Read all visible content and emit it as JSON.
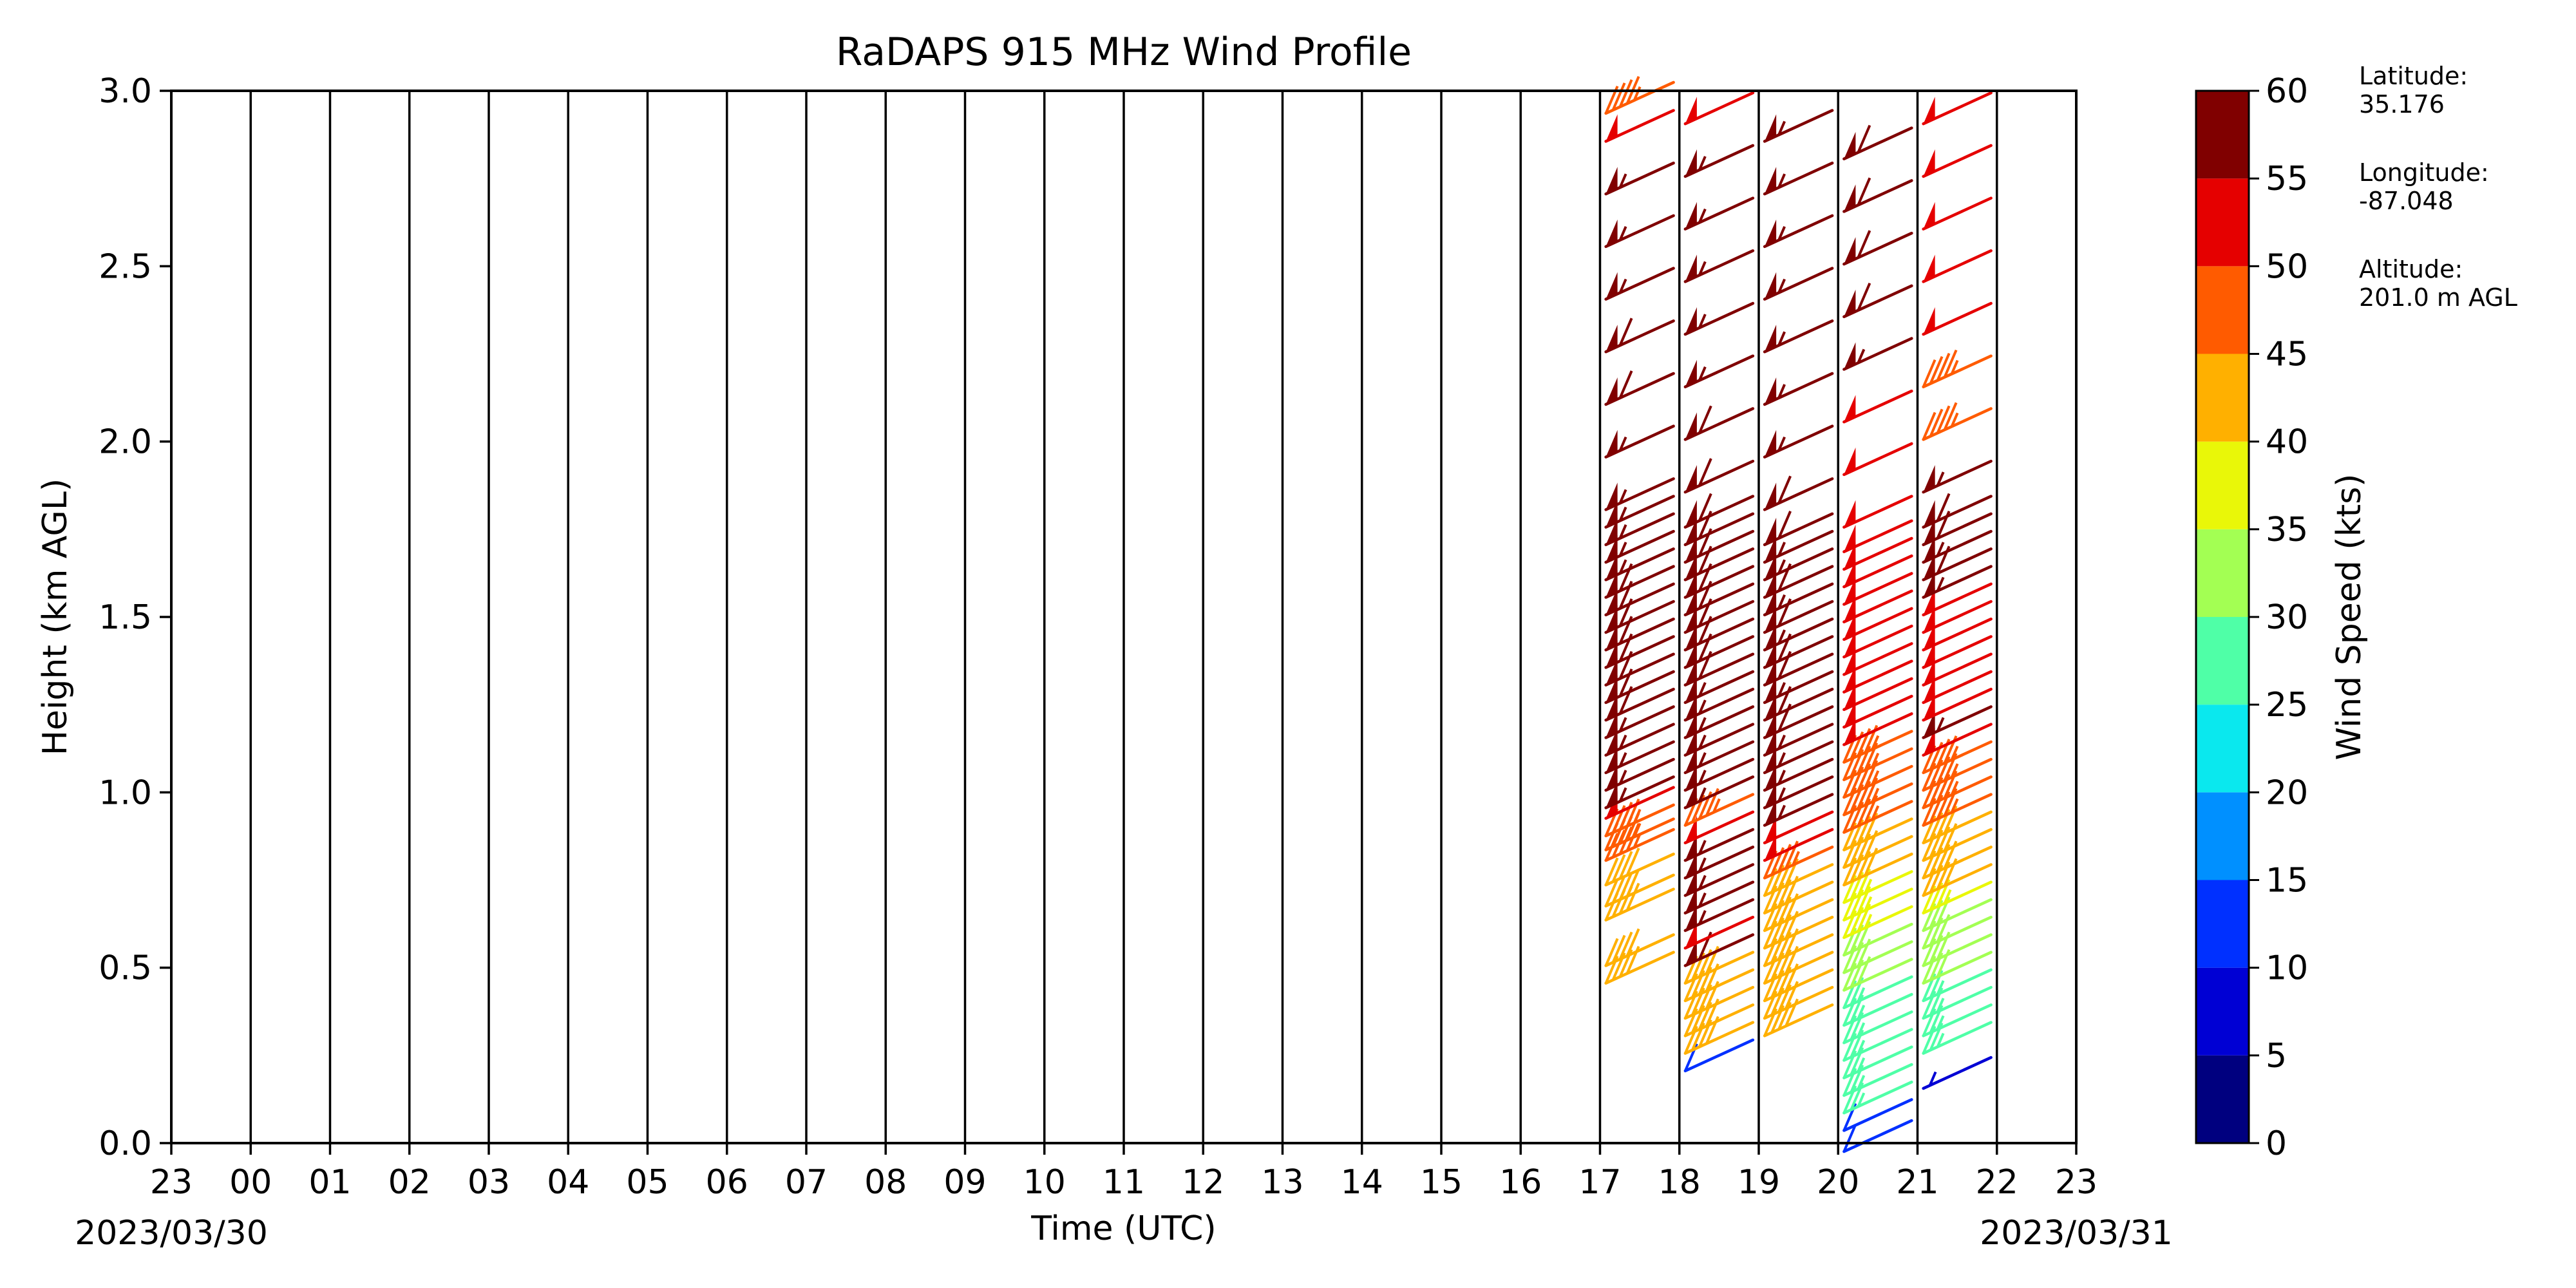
{
  "chart_data": {
    "type": "wind_barbs",
    "title": "RaDAPS 915 MHz Wind Profile",
    "xlabel": "Time (UTC)",
    "ylabel": "Height (km AGL)",
    "x_tick_labels": [
      "23",
      "00",
      "01",
      "02",
      "03",
      "04",
      "05",
      "06",
      "07",
      "08",
      "09",
      "10",
      "11",
      "12",
      "13",
      "14",
      "15",
      "16",
      "17",
      "18",
      "19",
      "20",
      "21",
      "22",
      "23"
    ],
    "date_left": "2023/03/30",
    "date_right": "2023/03/31",
    "y_ticks": [
      "0.0",
      "0.5",
      "1.0",
      "1.5",
      "2.0",
      "2.5",
      "3.0"
    ],
    "ylim": [
      0,
      3
    ],
    "grid": "vertical-hourly",
    "colorbar": {
      "label": "Wind Speed (kts)",
      "ticks": [
        "0",
        "5",
        "10",
        "15",
        "20",
        "25",
        "30",
        "35",
        "40",
        "45",
        "50",
        "55",
        "60"
      ],
      "colors": [
        "#00007f",
        "#0000d4",
        "#0030ff",
        "#0090ff",
        "#0ae8ee",
        "#4fffa7",
        "#a3ff53",
        "#e9f708",
        "#ffb000",
        "#ff5b00",
        "#e50000",
        "#800000"
      ]
    },
    "columns": [
      {
        "time": "17.5",
        "levels": [
          [
            0.5,
            40
          ],
          [
            0.55,
            40
          ],
          [
            0.68,
            40
          ],
          [
            0.72,
            40
          ],
          [
            0.78,
            40
          ],
          [
            0.85,
            45
          ],
          [
            0.88,
            45
          ],
          [
            0.92,
            45
          ],
          [
            0.97,
            50
          ],
          [
            1.0,
            55
          ],
          [
            1.05,
            55
          ],
          [
            1.1,
            55
          ],
          [
            1.15,
            55
          ],
          [
            1.2,
            55
          ],
          [
            1.25,
            60
          ],
          [
            1.3,
            60
          ],
          [
            1.35,
            60
          ],
          [
            1.4,
            60
          ],
          [
            1.45,
            60
          ],
          [
            1.5,
            60
          ],
          [
            1.55,
            60
          ],
          [
            1.6,
            60
          ],
          [
            1.65,
            55
          ],
          [
            1.7,
            55
          ],
          [
            1.75,
            55
          ],
          [
            1.8,
            55
          ],
          [
            1.85,
            55
          ],
          [
            2.0,
            55
          ],
          [
            2.15,
            60
          ],
          [
            2.3,
            60
          ],
          [
            2.45,
            55
          ],
          [
            2.6,
            55
          ],
          [
            2.75,
            55
          ],
          [
            2.9,
            50
          ],
          [
            2.98,
            45
          ]
        ]
      },
      {
        "time": "18.5",
        "levels": [
          [
            0.25,
            10
          ],
          [
            0.3,
            40
          ],
          [
            0.35,
            40
          ],
          [
            0.4,
            40
          ],
          [
            0.45,
            40
          ],
          [
            0.5,
            40
          ],
          [
            0.55,
            60
          ],
          [
            0.6,
            50
          ],
          [
            0.65,
            55
          ],
          [
            0.7,
            55
          ],
          [
            0.75,
            55
          ],
          [
            0.8,
            55
          ],
          [
            0.85,
            55
          ],
          [
            0.9,
            50
          ],
          [
            0.95,
            45
          ],
          [
            1.0,
            55
          ],
          [
            1.05,
            55
          ],
          [
            1.1,
            55
          ],
          [
            1.15,
            55
          ],
          [
            1.2,
            55
          ],
          [
            1.25,
            55
          ],
          [
            1.3,
            55
          ],
          [
            1.35,
            60
          ],
          [
            1.4,
            60
          ],
          [
            1.45,
            60
          ],
          [
            1.5,
            60
          ],
          [
            1.55,
            60
          ],
          [
            1.6,
            60
          ],
          [
            1.65,
            60
          ],
          [
            1.7,
            60
          ],
          [
            1.75,
            60
          ],
          [
            1.8,
            60
          ],
          [
            1.9,
            60
          ],
          [
            2.05,
            60
          ],
          [
            2.2,
            55
          ],
          [
            2.35,
            55
          ],
          [
            2.5,
            55
          ],
          [
            2.65,
            55
          ],
          [
            2.8,
            55
          ],
          [
            2.95,
            50
          ]
        ]
      },
      {
        "time": "19.5",
        "levels": [
          [
            0.35,
            40
          ],
          [
            0.4,
            40
          ],
          [
            0.45,
            40
          ],
          [
            0.5,
            40
          ],
          [
            0.55,
            40
          ],
          [
            0.6,
            40
          ],
          [
            0.65,
            40
          ],
          [
            0.7,
            40
          ],
          [
            0.75,
            40
          ],
          [
            0.8,
            45
          ],
          [
            0.85,
            50
          ],
          [
            0.9,
            50
          ],
          [
            0.95,
            55
          ],
          [
            1.0,
            55
          ],
          [
            1.05,
            55
          ],
          [
            1.1,
            55
          ],
          [
            1.15,
            55
          ],
          [
            1.2,
            60
          ],
          [
            1.25,
            60
          ],
          [
            1.3,
            55
          ],
          [
            1.35,
            60
          ],
          [
            1.4,
            60
          ],
          [
            1.45,
            55
          ],
          [
            1.5,
            60
          ],
          [
            1.55,
            55
          ],
          [
            1.6,
            60
          ],
          [
            1.65,
            55
          ],
          [
            1.7,
            55
          ],
          [
            1.75,
            60
          ],
          [
            1.85,
            60
          ],
          [
            2.0,
            55
          ],
          [
            2.15,
            55
          ],
          [
            2.3,
            55
          ],
          [
            2.45,
            55
          ],
          [
            2.6,
            55
          ],
          [
            2.75,
            55
          ],
          [
            2.9,
            55
          ]
        ]
      },
      {
        "time": "20.5",
        "levels": [
          [
            0.02,
            10
          ],
          [
            0.08,
            10
          ],
          [
            0.13,
            25
          ],
          [
            0.18,
            25
          ],
          [
            0.23,
            25
          ],
          [
            0.28,
            25
          ],
          [
            0.33,
            25
          ],
          [
            0.38,
            25
          ],
          [
            0.43,
            25
          ],
          [
            0.48,
            30
          ],
          [
            0.53,
            30
          ],
          [
            0.58,
            30
          ],
          [
            0.63,
            35
          ],
          [
            0.68,
            35
          ],
          [
            0.73,
            35
          ],
          [
            0.78,
            40
          ],
          [
            0.83,
            40
          ],
          [
            0.88,
            40
          ],
          [
            0.93,
            45
          ],
          [
            0.98,
            45
          ],
          [
            1.03,
            45
          ],
          [
            1.08,
            45
          ],
          [
            1.13,
            45
          ],
          [
            1.18,
            50
          ],
          [
            1.23,
            50
          ],
          [
            1.28,
            50
          ],
          [
            1.33,
            50
          ],
          [
            1.38,
            50
          ],
          [
            1.43,
            50
          ],
          [
            1.48,
            50
          ],
          [
            1.53,
            50
          ],
          [
            1.58,
            50
          ],
          [
            1.63,
            50
          ],
          [
            1.68,
            50
          ],
          [
            1.73,
            50
          ],
          [
            1.8,
            50
          ],
          [
            1.95,
            50
          ],
          [
            2.1,
            50
          ],
          [
            2.25,
            55
          ],
          [
            2.4,
            60
          ],
          [
            2.55,
            60
          ],
          [
            2.7,
            60
          ],
          [
            2.85,
            60
          ]
        ]
      },
      {
        "time": "21.5",
        "levels": [
          [
            0.2,
            5
          ],
          [
            0.3,
            25
          ],
          [
            0.35,
            25
          ],
          [
            0.4,
            25
          ],
          [
            0.45,
            25
          ],
          [
            0.5,
            30
          ],
          [
            0.55,
            30
          ],
          [
            0.6,
            30
          ],
          [
            0.65,
            30
          ],
          [
            0.7,
            35
          ],
          [
            0.75,
            40
          ],
          [
            0.8,
            40
          ],
          [
            0.85,
            40
          ],
          [
            0.9,
            40
          ],
          [
            0.95,
            45
          ],
          [
            1.0,
            45
          ],
          [
            1.05,
            45
          ],
          [
            1.1,
            45
          ],
          [
            1.15,
            50
          ],
          [
            1.2,
            55
          ],
          [
            1.25,
            50
          ],
          [
            1.3,
            50
          ],
          [
            1.35,
            50
          ],
          [
            1.4,
            50
          ],
          [
            1.45,
            50
          ],
          [
            1.5,
            50
          ],
          [
            1.55,
            50
          ],
          [
            1.6,
            55
          ],
          [
            1.65,
            60
          ],
          [
            1.7,
            55
          ],
          [
            1.75,
            60
          ],
          [
            1.8,
            60
          ],
          [
            1.9,
            55
          ],
          [
            2.05,
            45
          ],
          [
            2.2,
            45
          ],
          [
            2.35,
            50
          ],
          [
            2.5,
            50
          ],
          [
            2.65,
            50
          ],
          [
            2.8,
            50
          ],
          [
            2.95,
            50
          ]
        ]
      }
    ],
    "site": {
      "latitude_label": "Latitude:",
      "latitude": "35.176",
      "longitude_label": "Longitude:",
      "longitude": "-87.048",
      "altitude_label": "Altitude:",
      "altitude": "201.0 m AGL"
    }
  }
}
